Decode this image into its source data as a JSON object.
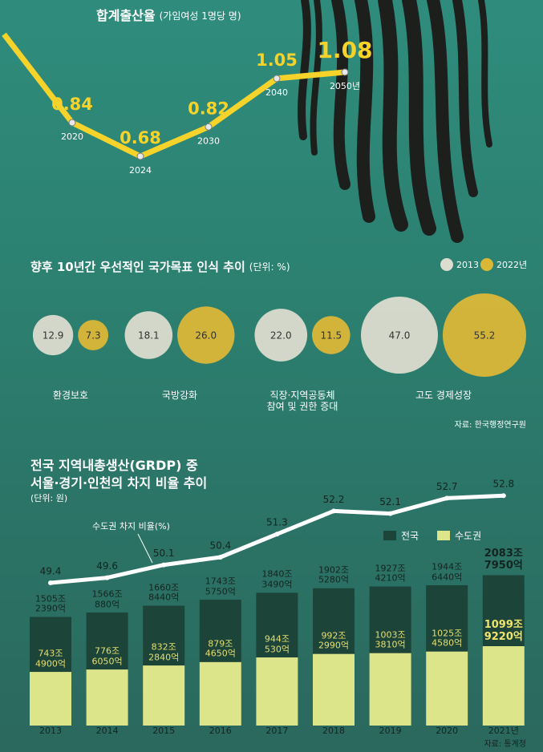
{
  "chart_data": [
    {
      "type": "line",
      "title": "합계출산율",
      "subtitle": "(가임여성 1명당 명)",
      "categories": [
        null,
        "2020",
        "2024",
        "2030",
        "2040",
        "2050년"
      ],
      "values": [
        1.26,
        0.84,
        0.68,
        0.82,
        1.05,
        1.08
      ],
      "color": "#f5d32b"
    },
    {
      "type": "bubble",
      "title": "향후 10년간 우선적인 국가목표 인식 추이",
      "subtitle": "(단위: %)",
      "categories": [
        "환경보호",
        "국방강화",
        "직장·지역공동체\n참여 및 권한 증대",
        "고도 경제성장"
      ],
      "series": [
        {
          "name": "2013",
          "color": "#dcdccf",
          "values": [
            12.9,
            18.1,
            22.0,
            47.0
          ],
          "value_labels": [
            "12.9",
            "18.1",
            "22.0",
            "47.0"
          ]
        },
        {
          "name": "2022년",
          "color": "#dbb738",
          "values": [
            7.3,
            26.0,
            11.5,
            55.2
          ],
          "value_labels": [
            "7.3",
            "26.0",
            "11.5",
            "55.2"
          ]
        }
      ],
      "legend": "top-right",
      "source": "자료: 한국행정연구원"
    },
    {
      "type": "bar-line",
      "title": "전국 지역내총생산(GRDP) 중\n서울·경기·인천의 차지 비율 추이",
      "subtitle": "(단위: 원)",
      "categories": [
        "2013",
        "2014",
        "2015",
        "2016",
        "2017",
        "2018",
        "2019",
        "2020",
        "2021년"
      ],
      "series": [
        {
          "name": "전국",
          "color": "#1d4438",
          "values": [
            1505.239,
            1566.088,
            1660.844,
            1743.575,
            1840.349,
            1902.528,
            1927.421,
            1944.644,
            2083.795
          ],
          "value_labels": [
            "1505조\n2390억",
            "1566조\n880억",
            "1660조\n8440억",
            "1743조\n5750억",
            "1840조\n3490억",
            "1902조\n5280억",
            "1927조\n4210억",
            "1944조\n6440억",
            "2083조\n7950억"
          ]
        },
        {
          "name": "수도권",
          "color": "#dde58a",
          "values": [
            743.49,
            776.605,
            832.284,
            879.465,
            944.053,
            992.299,
            1003.381,
            1025.458,
            1099.922
          ],
          "value_labels": [
            "743조\n4900억",
            "776조\n6050억",
            "832조\n2840억",
            "879조\n4650억",
            "944조\n530억",
            "992조\n2990억",
            "1003조\n3810억",
            "1025조\n4580억",
            "1099조\n9220억"
          ]
        },
        {
          "name": "수도권 차지 비율(%)",
          "type": "line",
          "color": "#ffffff",
          "values": [
            49.4,
            49.6,
            50.1,
            50.4,
            51.3,
            52.2,
            52.1,
            52.7,
            52.8
          ]
        }
      ],
      "source": "자료: 통계청"
    }
  ]
}
